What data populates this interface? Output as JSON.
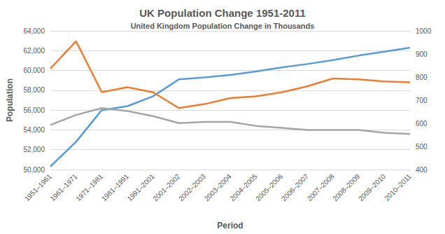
{
  "chart_data": {
    "type": "line",
    "title": "UK Population Change 1951-2011",
    "subtitle": "United Kingdom Population Change in Thousands",
    "x_label": "Period",
    "y_label": "Population",
    "categories": [
      "1951–1961",
      "1961–1971",
      "1971–1981",
      "1981–1991",
      "1991–2001",
      "2001–2002",
      "2002–2003",
      "2003–2004",
      "2004–2005",
      "2005–2006",
      "2006–2007",
      "2007–2008",
      "2008–2009",
      "2009–2010",
      "2010–2011"
    ],
    "series": [
      {
        "color": "#5b9bd5",
        "values": [
          50300,
          52800,
          56000,
          56400,
          57400,
          59100,
          59300,
          59550,
          59900,
          60300,
          60650,
          61050,
          61500,
          61900,
          62300
        ]
      },
      {
        "color": "#ed7d31",
        "axis": "y2",
        "values": [
          837,
          955,
          735,
          756,
          734,
          666,
          683,
          709,
          717,
          734,
          760,
          794,
          790,
          781,
          777
        ]
      },
      {
        "color": "#a5a5a5",
        "axis": "y2",
        "values": [
          593,
          636,
          666,
          653,
          631,
          601,
          606,
          606,
          589,
          580,
          571,
          571,
          571,
          559,
          554
        ]
      }
    ],
    "ylim": [
      50000,
      64000
    ],
    "yticks": [
      {
        "value": 50000,
        "label": "50,000"
      },
      {
        "value": 52000,
        "label": "52,000"
      },
      {
        "value": 54000,
        "label": "54,000"
      },
      {
        "value": 56000,
        "label": "56,000"
      },
      {
        "value": 58000,
        "label": "58,000"
      },
      {
        "value": 60000,
        "label": "60,000"
      },
      {
        "value": 62000,
        "label": "62,000"
      },
      {
        "value": 64000,
        "label": "64,000"
      }
    ],
    "y2lim": [
      400,
      1000
    ],
    "y2ticks": [
      400,
      500,
      600,
      700,
      800,
      900,
      1000
    ],
    "grid": true
  }
}
